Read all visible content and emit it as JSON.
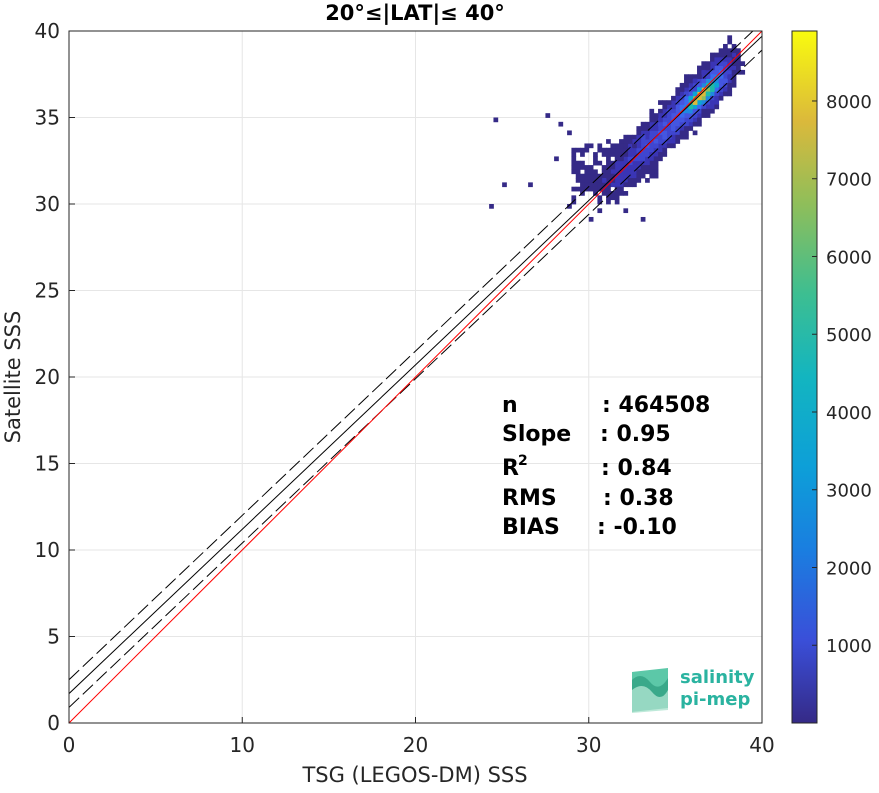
{
  "chart_data": {
    "type": "heatmap",
    "title": "20°≤|LAT|≤ 40°",
    "xlabel": "TSG (LEGOS-DM) SSS",
    "ylabel": "Satellite SSS",
    "xlim": [
      0,
      40
    ],
    "ylim": [
      0,
      40
    ],
    "xticks": [
      0,
      10,
      20,
      30,
      40
    ],
    "yticks": [
      0,
      5,
      10,
      15,
      20,
      25,
      30,
      35,
      40
    ],
    "grid": true,
    "colorbar": {
      "colormap": "parula",
      "range": [
        0,
        8900
      ],
      "ticks": [
        1000,
        2000,
        3000,
        4000,
        5000,
        6000,
        7000,
        8000
      ]
    },
    "lines": [
      {
        "name": "",
        "kind": "one-to-one",
        "slope": 1.0,
        "intercept": 0,
        "color": "#ff0000"
      },
      {
        "name": "",
        "kind": "regression fit",
        "slope": 0.95,
        "intercept": 1.7,
        "color": "#000000"
      },
      {
        "name": "",
        "kind": "+/- bounds",
        "slope": 0.95,
        "intercept_upper": 2.5,
        "intercept_lower": 0.9,
        "color": "#000000",
        "dash": "dashed"
      }
    ],
    "density_core": {
      "x": 36.5,
      "y": 36.3,
      "peak_count": 8900
    },
    "stats": {
      "n_label": "n",
      "n_value": ": 464508",
      "slope_label": "Slope",
      "slope_value": ": 0.95",
      "r2_label": "R",
      "r2_sup": "2",
      "r2_value": ": 0.84",
      "rms_label": "RMS",
      "rms_value": ": 0.38",
      "bias_label": "BIAS",
      "bias_value": ": -0.10"
    }
  },
  "logo": {
    "line1": "salinity",
    "line2": "pi-mep"
  }
}
